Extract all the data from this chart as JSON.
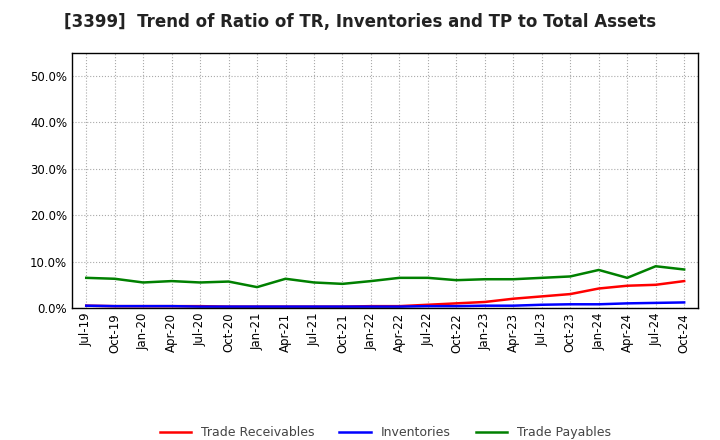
{
  "title": "[3399]  Trend of Ratio of TR, Inventories and TP to Total Assets",
  "x_labels": [
    "Jul-19",
    "Oct-19",
    "Jan-20",
    "Apr-20",
    "Jul-20",
    "Oct-20",
    "Jan-21",
    "Apr-21",
    "Jul-21",
    "Oct-21",
    "Jan-22",
    "Apr-22",
    "Jul-22",
    "Oct-22",
    "Jan-23",
    "Apr-23",
    "Jul-23",
    "Oct-23",
    "Jan-24",
    "Apr-24",
    "Jul-24",
    "Oct-24"
  ],
  "trade_receivables": [
    0.005,
    0.004,
    0.004,
    0.004,
    0.004,
    0.003,
    0.003,
    0.003,
    0.003,
    0.003,
    0.004,
    0.004,
    0.007,
    0.01,
    0.013,
    0.02,
    0.025,
    0.03,
    0.042,
    0.048,
    0.05,
    0.058
  ],
  "inventories": [
    0.005,
    0.004,
    0.004,
    0.004,
    0.003,
    0.003,
    0.003,
    0.003,
    0.003,
    0.003,
    0.003,
    0.003,
    0.004,
    0.004,
    0.005,
    0.005,
    0.007,
    0.008,
    0.008,
    0.01,
    0.011,
    0.012
  ],
  "trade_payables": [
    0.065,
    0.063,
    0.055,
    0.058,
    0.055,
    0.057,
    0.045,
    0.063,
    0.055,
    0.052,
    0.058,
    0.065,
    0.065,
    0.06,
    0.062,
    0.062,
    0.065,
    0.068,
    0.082,
    0.065,
    0.09,
    0.083
  ],
  "tr_color": "#ff0000",
  "inv_color": "#0000ff",
  "tp_color": "#008000",
  "ylim": [
    0.0,
    0.55
  ],
  "yticks": [
    0.0,
    0.1,
    0.2,
    0.3,
    0.4,
    0.5
  ],
  "bg_color": "#ffffff",
  "plot_bg_color": "#ffffff",
  "grid_color": "#aaaaaa",
  "legend_labels": [
    "Trade Receivables",
    "Inventories",
    "Trade Payables"
  ],
  "line_width": 1.8,
  "title_fontsize": 12,
  "tick_fontsize": 8.5,
  "legend_fontsize": 9
}
